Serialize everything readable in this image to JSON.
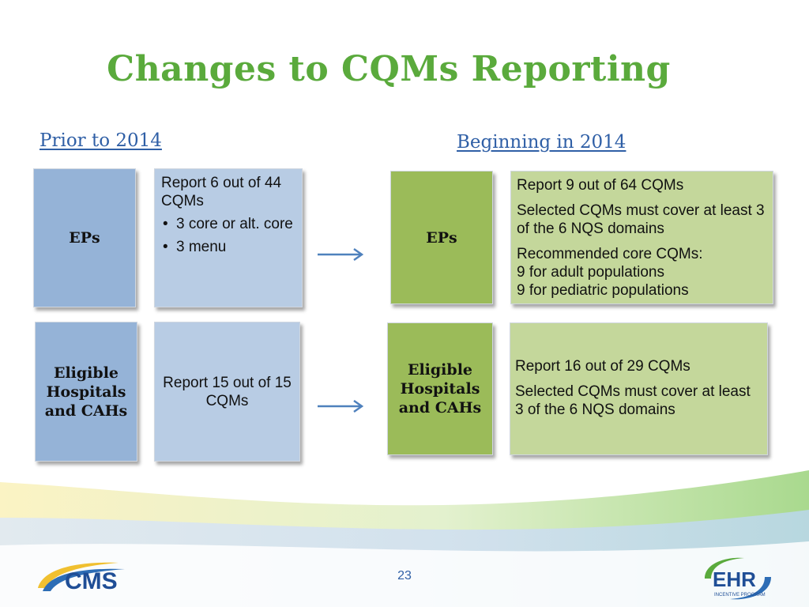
{
  "slide": {
    "title": "Changes to CQMs Reporting",
    "page_number": "23"
  },
  "prior": {
    "heading": "Prior to 2014",
    "eps_label": "EPs",
    "eps_text_line": "Report 6 out of 44 CQMs",
    "eps_bullets": [
      "3 core or alt. core",
      "3 menu"
    ],
    "hospitals_label": "Eligible Hospitals and CAHs",
    "hospitals_text": "Report 15 out of 15 CQMs"
  },
  "beginning": {
    "heading": "Beginning in 2014",
    "eps_label": "EPs",
    "eps_p1": "Report 9 out of 64 CQMs",
    "eps_p2": "Selected CQMs must cover at least 3 of the 6 NQS domains",
    "eps_p3_line1": "Recommended core CQMs:",
    "eps_p3_line2": "9 for adult populations",
    "eps_p3_line3": "9 for pediatric populations",
    "hospitals_label": "Eligible Hospitals and CAHs",
    "hospitals_p1": "Report 16 out of 29 CQMs",
    "hospitals_p2": "Selected CQMs must cover at least 3 of the 6 NQS domains"
  },
  "logos": {
    "left": "CMS",
    "right_main": "EHR",
    "right_sub": "INCENTIVE PROGRAM"
  },
  "colors": {
    "title_green": "#5aaa3c",
    "heading_blue": "#2f5fa6",
    "blue_dark": "#95b3d7",
    "blue_light": "#b8cce4",
    "green_dark": "#9bbb59",
    "green_light": "#c4d79b",
    "arrow": "#4f81bd"
  }
}
